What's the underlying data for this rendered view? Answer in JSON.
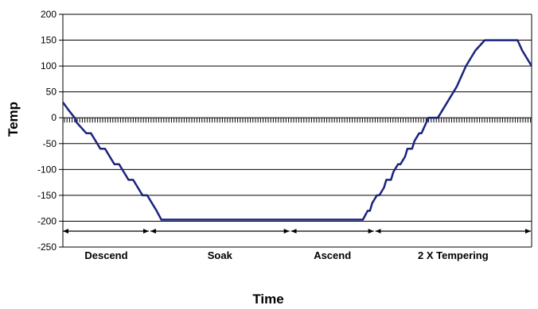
{
  "chart_data": {
    "type": "line",
    "xlabel": "Time",
    "ylabel": "Temp",
    "ylim": [
      -250,
      200
    ],
    "yticks": [
      200,
      150,
      100,
      50,
      0,
      -50,
      -100,
      -150,
      -200,
      -250
    ],
    "xlim": [
      0,
      100
    ],
    "grid": "horizontal",
    "legend": "none",
    "line_color": "#1a237e",
    "series": [
      {
        "x": [
          0,
          1.2,
          2.5,
          3,
          4,
          5,
          6,
          7,
          8,
          9,
          10,
          11,
          12,
          13,
          14,
          15,
          16,
          17,
          18,
          19,
          20,
          21,
          22,
          23,
          24,
          25,
          26,
          27,
          28,
          29,
          30,
          45,
          60,
          64,
          65,
          65.5,
          66,
          67,
          67.5,
          68.5,
          69,
          70,
          70.5,
          71.5,
          72,
          73,
          73.5,
          74.5,
          75,
          76,
          76.5,
          78,
          80,
          82,
          84,
          86,
          88,
          90,
          92,
          94,
          96,
          97,
          98,
          100
        ],
        "y": [
          30,
          15,
          0,
          -10,
          -20,
          -30,
          -30,
          -45,
          -60,
          -60,
          -75,
          -90,
          -90,
          -105,
          -120,
          -120,
          -135,
          -150,
          -150,
          -165,
          -180,
          -197,
          -197,
          -197,
          -197,
          -197,
          -197,
          -197,
          -197,
          -197,
          -197,
          -197,
          -197,
          -197,
          -180,
          -180,
          -165,
          -150,
          -150,
          -135,
          -120,
          -120,
          -105,
          -90,
          -90,
          -75,
          -60,
          -60,
          -45,
          -30,
          -30,
          0,
          0,
          30,
          60,
          100,
          130,
          150,
          150,
          150,
          150,
          150,
          130,
          100
        ]
      }
    ],
    "phases": [
      {
        "label": "Descend",
        "x_start": 0,
        "x_end": 18.5
      },
      {
        "label": "Soak",
        "x_start": 18.5,
        "x_end": 48.5
      },
      {
        "label": "Ascend",
        "x_start": 48.5,
        "x_end": 66.5
      },
      {
        "label": "2 X Tempering",
        "x_start": 66.5,
        "x_end": 100
      }
    ]
  }
}
